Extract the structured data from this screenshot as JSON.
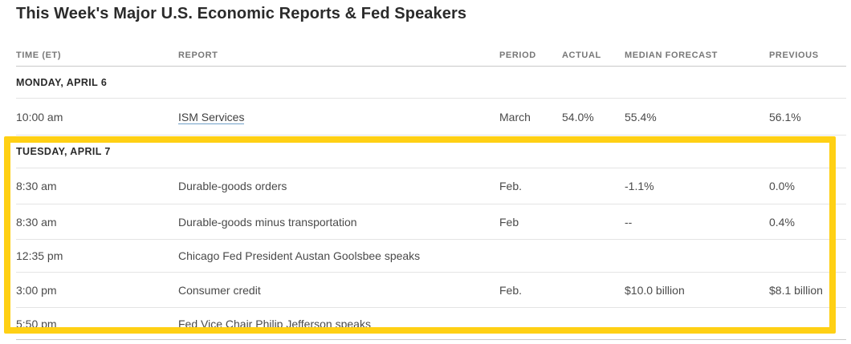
{
  "title": "This Week's Major U.S. Economic Reports & Fed Speakers",
  "highlight_color": "#ffd014",
  "table": {
    "columns": [
      "TIME (ET)",
      "REPORT",
      "PERIOD",
      "ACTUAL",
      "MEDIAN FORECAST",
      "PREVIOUS"
    ],
    "sections": [
      {
        "day": "MONDAY, APRIL 6",
        "highlighted": false,
        "rows": [
          {
            "time": "10:00 am",
            "report": "ISM Services",
            "is_link": true,
            "period": "March",
            "actual": "54.0%",
            "forecast": "55.4%",
            "previous": "56.1%"
          }
        ]
      },
      {
        "day": "TUESDAY, APRIL 7",
        "highlighted": true,
        "rows": [
          {
            "time": "8:30 am",
            "report": "Durable-goods orders",
            "is_link": false,
            "period": "Feb.",
            "actual": "",
            "forecast": "-1.1%",
            "previous": "0.0%"
          },
          {
            "time": "8:30 am",
            "report": "Durable-goods minus transportation",
            "is_link": false,
            "period": "Feb",
            "actual": "",
            "forecast": "--",
            "previous": "0.4%"
          },
          {
            "time": "12:35 pm",
            "report": "Chicago Fed President Austan Goolsbee speaks",
            "is_link": false,
            "period": "",
            "actual": "",
            "forecast": "",
            "previous": ""
          },
          {
            "time": "3:00 pm",
            "report": "Consumer credit",
            "is_link": false,
            "period": "Feb.",
            "actual": "",
            "forecast": "$10.0 billion",
            "previous": "$8.1 billion"
          },
          {
            "time": "5:50 pm",
            "report": "Fed Vice Chair Philip Jefferson speaks",
            "is_link": false,
            "period": "",
            "actual": "",
            "forecast": "",
            "previous": ""
          }
        ]
      }
    ]
  }
}
